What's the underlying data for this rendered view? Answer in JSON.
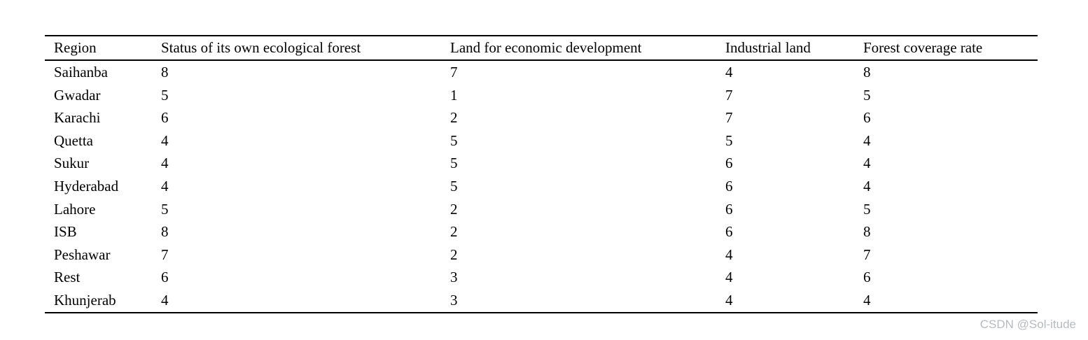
{
  "chart_data": {
    "type": "table",
    "title": "",
    "columns": [
      "Region",
      "Status of its own ecological forest",
      "Land for economic development",
      "Industrial land",
      "Forest coverage rate"
    ],
    "rows": [
      [
        "Saihanba",
        8,
        7,
        4,
        8
      ],
      [
        "Gwadar",
        5,
        1,
        7,
        5
      ],
      [
        "Karachi",
        6,
        2,
        7,
        6
      ],
      [
        "Quetta",
        4,
        5,
        5,
        4
      ],
      [
        "Sukur",
        4,
        5,
        6,
        4
      ],
      [
        "Hyderabad",
        4,
        5,
        6,
        4
      ],
      [
        "Lahore",
        5,
        2,
        6,
        5
      ],
      [
        "ISB",
        8,
        2,
        6,
        8
      ],
      [
        "Peshawar",
        7,
        2,
        4,
        7
      ],
      [
        "Rest",
        6,
        3,
        4,
        6
      ],
      [
        "Khunjerab",
        4,
        3,
        4,
        4
      ]
    ],
    "layout": {
      "rules": [
        "top",
        "below-header",
        "bottom"
      ],
      "grid": false,
      "text_align": "left"
    }
  },
  "watermark": {
    "text": "CSDN @Sol-itude",
    "color": "#b7babd"
  }
}
